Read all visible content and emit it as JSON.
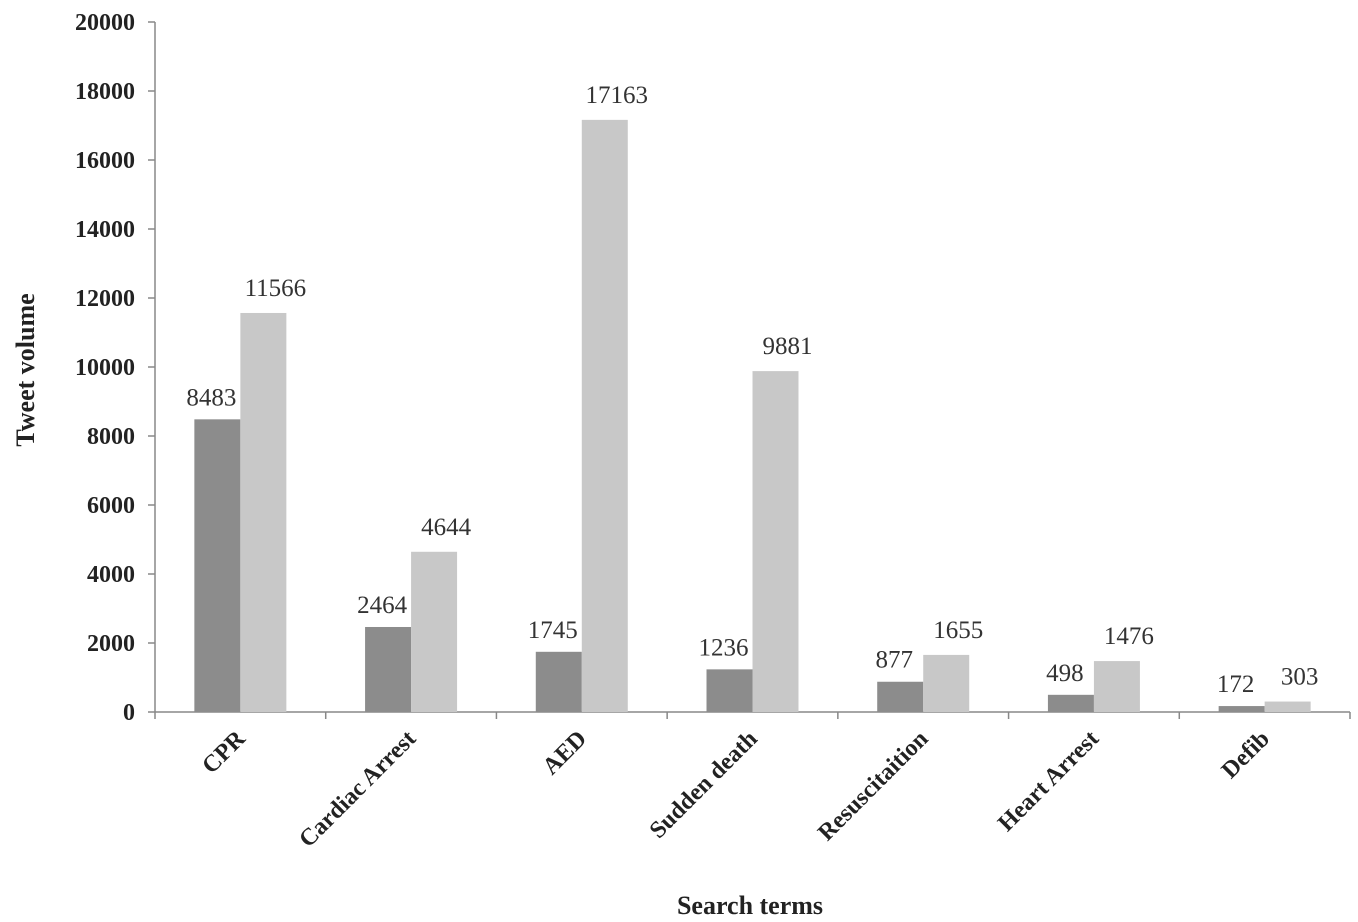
{
  "chart_data": {
    "type": "bar",
    "title": "",
    "xlabel": "Search terms",
    "ylabel": "Tweet volume",
    "ylim": [
      0,
      20000
    ],
    "yticks": [
      "0",
      "2000",
      "4000",
      "6000",
      "8000",
      "10000",
      "12000",
      "14000",
      "16000",
      "18000",
      "20000"
    ],
    "categories": [
      "CPR",
      "Cardiac Arrest",
      "AED",
      "Sudden death",
      "Resuscitaition",
      "Heart Arrest",
      "Defib"
    ],
    "series": [
      {
        "values": [
          8483,
          2464,
          1745,
          1236,
          877,
          498,
          172
        ],
        "labels": [
          "8483",
          "2464",
          "1745",
          "1236",
          "877",
          "498",
          "172"
        ],
        "color": "#8c8c8c"
      },
      {
        "values": [
          11566,
          4644,
          17163,
          9881,
          1655,
          1476,
          303
        ],
        "labels": [
          "11566",
          "4644",
          "17163",
          "9881",
          "1655",
          "1476",
          "303"
        ],
        "color": "#c8c8c8"
      }
    ],
    "grid": false,
    "legend": "none"
  }
}
